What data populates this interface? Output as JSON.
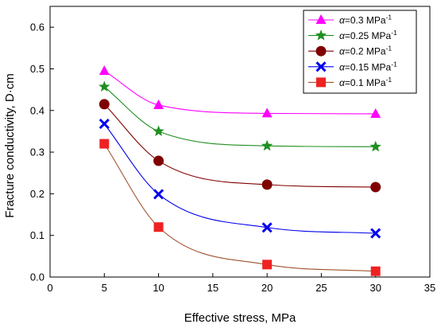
{
  "chart_data": {
    "type": "scatter",
    "xlabel": "Effective stress, MPa",
    "ylabel": "Fracture conductivity, D·cm",
    "xlim": [
      0,
      35
    ],
    "ylim": [
      0,
      0.65
    ],
    "x_ticks": [
      "0",
      "5",
      "10",
      "15",
      "20",
      "25",
      "30",
      "35"
    ],
    "y_ticks": [
      "0.0",
      "0.1",
      "0.2",
      "0.3",
      "0.4",
      "0.5",
      "0.6"
    ],
    "grid": false,
    "legend_position": "top-right",
    "x": [
      5,
      10,
      20,
      30
    ],
    "series": [
      {
        "name": "α=0.3 MPa⁻¹",
        "legend_prefix": "α",
        "legend_value": "=0.3 MPa",
        "legend_sup": "-1",
        "marker": "triangle",
        "color": "#ff00ff",
        "line_color": "#ff00ff",
        "values": [
          0.495,
          0.413,
          0.393,
          0.392
        ]
      },
      {
        "name": "α=0.25 MPa⁻¹",
        "legend_prefix": "α",
        "legend_value": "=0.25 MPa",
        "legend_sup": "-1",
        "marker": "star",
        "color": "#1f8f1f",
        "line_color": "#1f8f1f",
        "values": [
          0.457,
          0.35,
          0.315,
          0.313
        ]
      },
      {
        "name": "α=0.2 MPa⁻¹",
        "legend_prefix": "α",
        "legend_value": "=0.2 MPa",
        "legend_sup": "-1",
        "marker": "circle",
        "color": "#800000",
        "line_color": "#800000",
        "values": [
          0.415,
          0.279,
          0.222,
          0.216
        ]
      },
      {
        "name": "α=0.15 MPa⁻¹",
        "legend_prefix": "α",
        "legend_value": "=0.15 MPa",
        "legend_sup": "-1",
        "marker": "x",
        "color": "#0000ee",
        "line_color": "#0000ee",
        "values": [
          0.368,
          0.199,
          0.119,
          0.105
        ]
      },
      {
        "name": "α=0.1 MPa⁻¹",
        "legend_prefix": "α",
        "legend_value": "=0.1 MPa",
        "legend_sup": "-1",
        "marker": "square",
        "color": "#ee2222",
        "line_color": "#a0522d",
        "values": [
          0.32,
          0.12,
          0.03,
          0.014
        ]
      }
    ]
  }
}
